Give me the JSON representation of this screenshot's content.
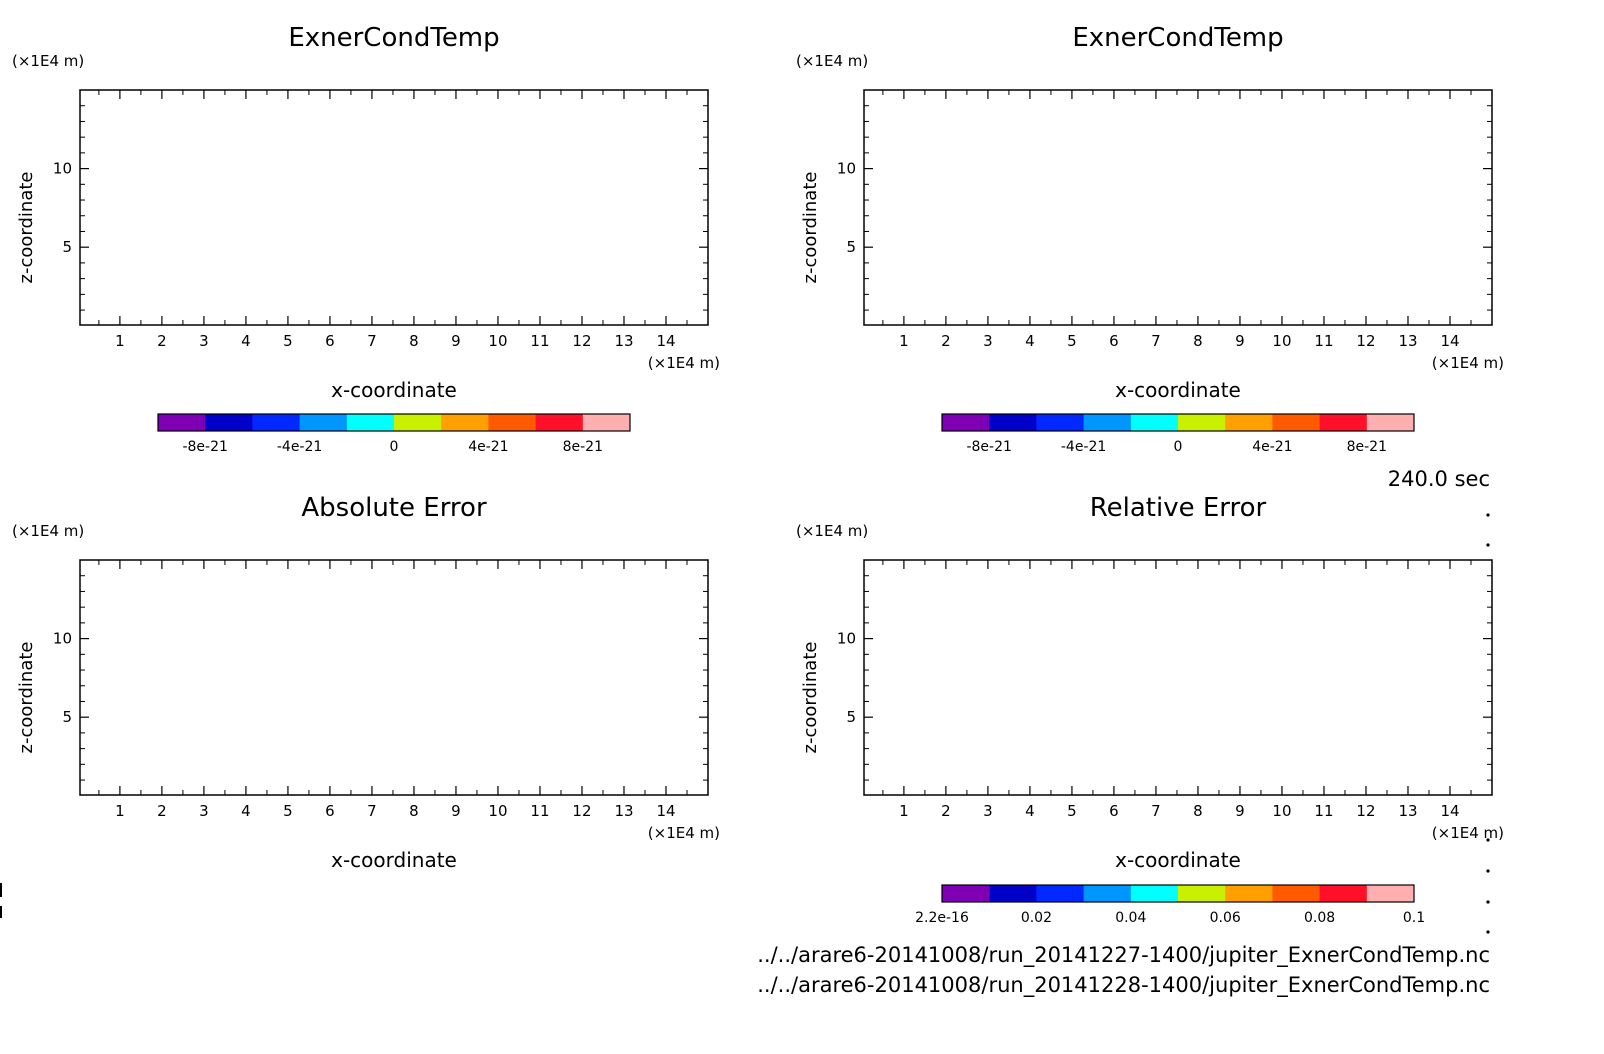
{
  "time_label": "240.0 sec",
  "file_paths": [
    "../../arare6-20141008/run_20141227-1400/jupiter_ExnerCondTemp.nc",
    "../../arare6-20141008/run_20141228-1400/jupiter_ExnerCondTemp.nc"
  ],
  "colorbar_colors": [
    "#7f00b4",
    "#0000c8",
    "#0028ff",
    "#0096ff",
    "#00ffff",
    "#c8f000",
    "#ffa000",
    "#ff5a00",
    "#ff0f28",
    "#ffafaf"
  ],
  "chart_data": [
    {
      "type": "heatmap",
      "title": "ExnerCondTemp",
      "xlabel": "x-coordinate",
      "ylabel": "z-coordinate",
      "x_unit": "(×1E4 m)",
      "y_unit": "(×1E4 m)",
      "xlim": [
        0.05,
        15
      ],
      "ylim": [
        0.05,
        15
      ],
      "x_ticks": [
        "1",
        "2",
        "3",
        "4",
        "5",
        "6",
        "7",
        "8",
        "9",
        "10",
        "11",
        "12",
        "13",
        "14"
      ],
      "y_ticks": [
        "5",
        "10"
      ],
      "colorbar": {
        "min": -1e-20,
        "max": 1e-20,
        "labels": [
          "-8e-21",
          "-4e-21",
          "0",
          "4e-21",
          "8e-21"
        ]
      }
    },
    {
      "type": "heatmap",
      "title": "ExnerCondTemp",
      "xlabel": "x-coordinate",
      "ylabel": "z-coordinate",
      "x_unit": "(×1E4 m)",
      "y_unit": "(×1E4 m)",
      "xlim": [
        0.05,
        15
      ],
      "ylim": [
        0.05,
        15
      ],
      "x_ticks": [
        "1",
        "2",
        "3",
        "4",
        "5",
        "6",
        "7",
        "8",
        "9",
        "10",
        "11",
        "12",
        "13",
        "14"
      ],
      "y_ticks": [
        "5",
        "10"
      ],
      "colorbar": {
        "min": -1e-20,
        "max": 1e-20,
        "labels": [
          "-8e-21",
          "-4e-21",
          "0",
          "4e-21",
          "8e-21"
        ]
      }
    },
    {
      "type": "heatmap",
      "title": "Absolute Error",
      "xlabel": "x-coordinate",
      "ylabel": "z-coordinate",
      "x_unit": "(×1E4 m)",
      "y_unit": "(×1E4 m)",
      "xlim": [
        0.05,
        15
      ],
      "ylim": [
        0.05,
        15
      ],
      "x_ticks": [
        "1",
        "2",
        "3",
        "4",
        "5",
        "6",
        "7",
        "8",
        "9",
        "10",
        "11",
        "12",
        "13",
        "14"
      ],
      "y_ticks": [
        "5",
        "10"
      ],
      "colorbar": null
    },
    {
      "type": "heatmap",
      "title": "Relative Error",
      "xlabel": "x-coordinate",
      "ylabel": "z-coordinate",
      "x_unit": "(×1E4 m)",
      "y_unit": "(×1E4 m)",
      "xlim": [
        0.05,
        15
      ],
      "ylim": [
        0.05,
        15
      ],
      "x_ticks": [
        "1",
        "2",
        "3",
        "4",
        "5",
        "6",
        "7",
        "8",
        "9",
        "10",
        "11",
        "12",
        "13",
        "14"
      ],
      "y_ticks": [
        "5",
        "10"
      ],
      "colorbar": {
        "min": 2.2e-16,
        "max": 0.1,
        "labels": [
          "2.2e-16",
          "0.02",
          "0.04",
          "0.06",
          "0.08",
          "0.1"
        ]
      }
    }
  ]
}
